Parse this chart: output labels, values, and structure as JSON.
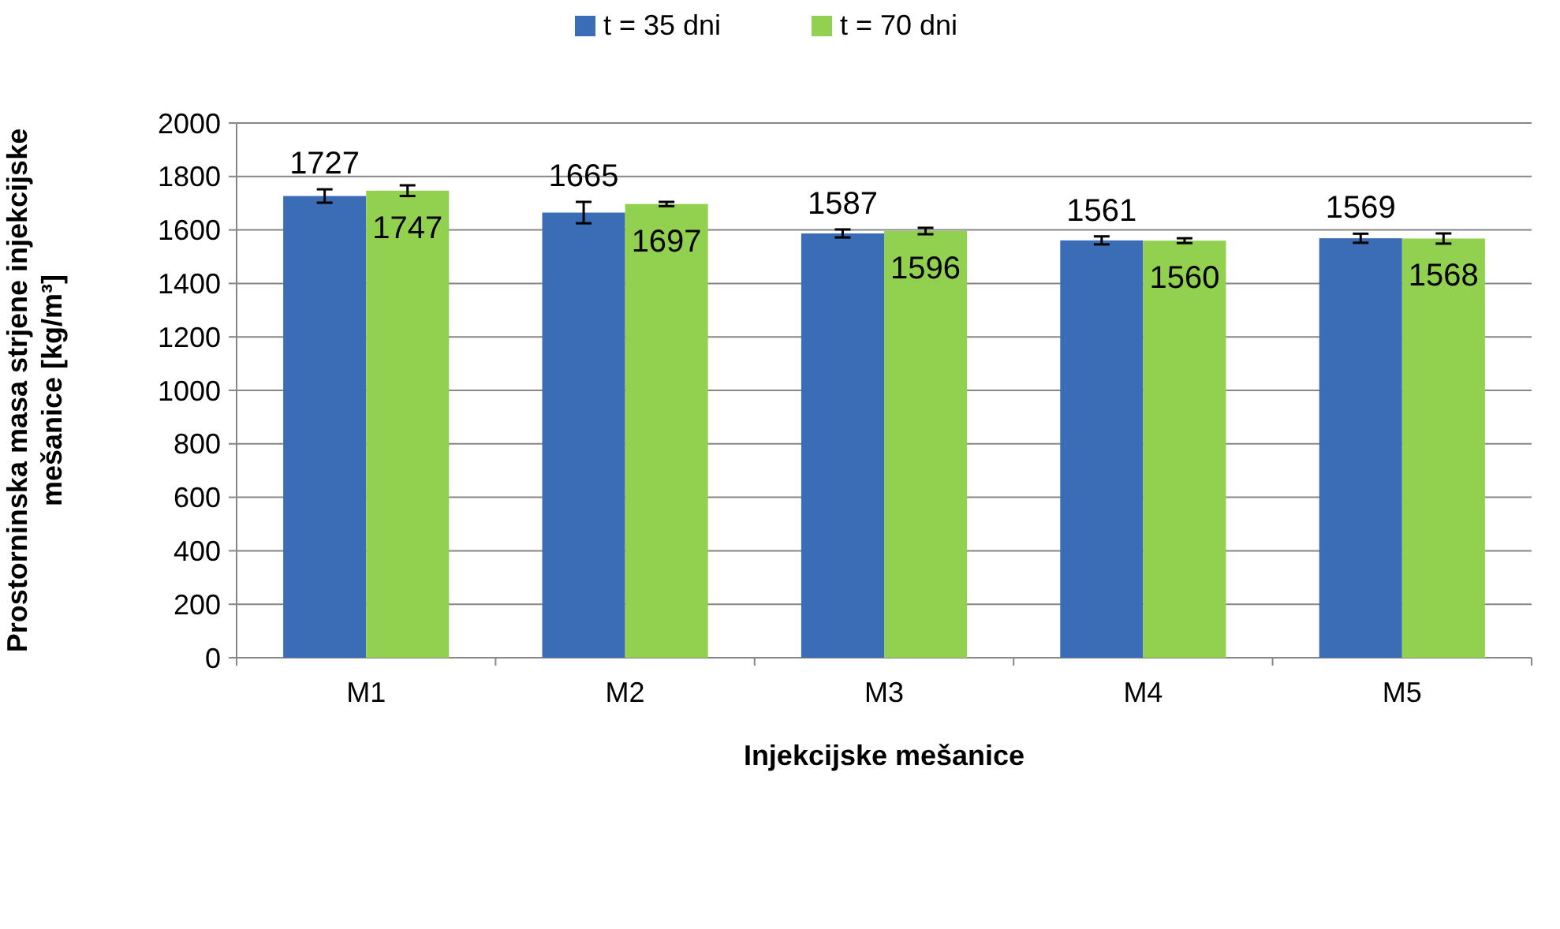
{
  "chart_data": {
    "type": "bar",
    "xlabel": "Injekcijske mešanice",
    "ylabel": "Prostorninska masa strjene injekcijske mešanice [kg/m³]",
    "categories": [
      "M1",
      "M2",
      "M3",
      "M4",
      "M5"
    ],
    "series": [
      {
        "name": "t = 35 dni",
        "color": "#3a6db5",
        "values": [
          1727,
          1665,
          1587,
          1561,
          1569
        ],
        "errors": [
          25,
          40,
          15,
          15,
          17
        ]
      },
      {
        "name": "t = 70 dni",
        "color": "#92d050",
        "values": [
          1747,
          1697,
          1596,
          1560,
          1568
        ],
        "errors": [
          20,
          8,
          12,
          9,
          19
        ]
      }
    ],
    "ylim": [
      0,
      2000
    ],
    "yticks": [
      0,
      200,
      400,
      600,
      800,
      1000,
      1200,
      1400,
      1600,
      1800,
      2000
    ],
    "grid": "y",
    "legend": "top",
    "data_labels": true
  }
}
